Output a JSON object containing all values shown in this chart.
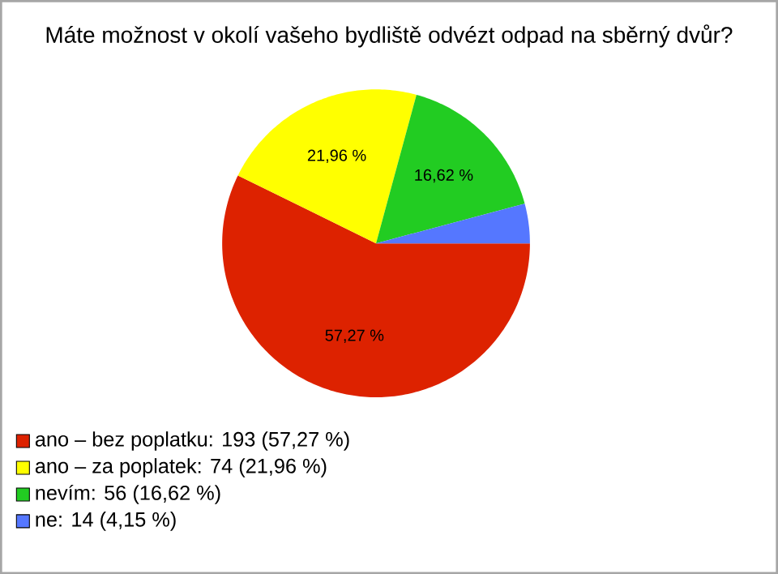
{
  "chart_data": {
    "type": "pie",
    "title": "Máte možnost v okolí vašeho bydliště odvézt odpad na sběrný dvůr?",
    "categories": [
      "ano – bez poplatku: 193 (57,27 %)",
      "ano – za poplatek: 74 (21,96 %)",
      "nevím: 56 (16,62 %)",
      "ne: 14 (4,15 %)"
    ],
    "values": [
      57.27,
      21.96,
      16.62,
      4.15
    ],
    "colors": [
      "#dd2200",
      "#ffff00",
      "#22cc22",
      "#5577ff"
    ],
    "value_labels": [
      "57,27 %",
      "21,96 %",
      "16,62 %",
      null
    ],
    "legend": "bottom left"
  }
}
